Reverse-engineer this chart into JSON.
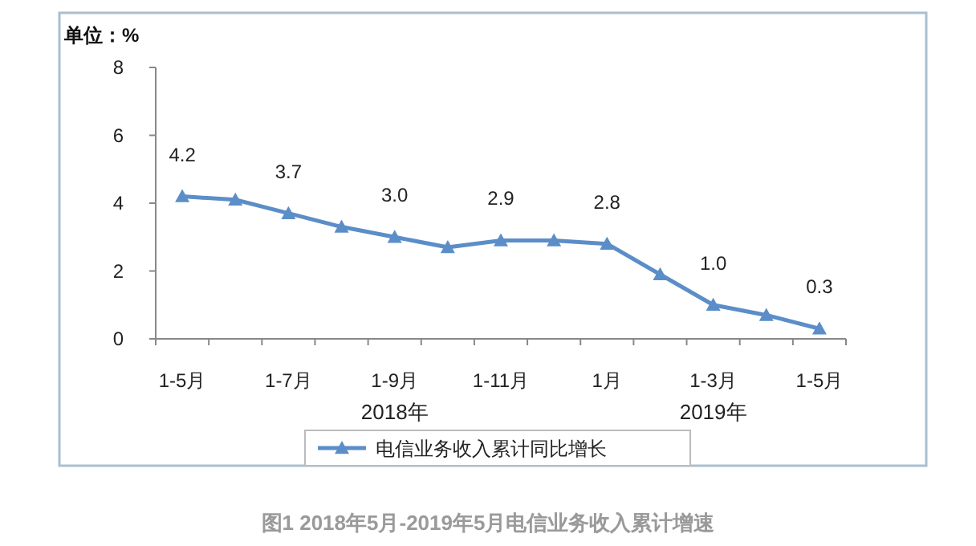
{
  "chart_data": {
    "type": "line",
    "ylabel": "单位：%",
    "categories": [
      "1-5月",
      null,
      "1-7月",
      null,
      "1-9月",
      null,
      "1-11月",
      null,
      "1月",
      null,
      "1-3月",
      null,
      "1-5月"
    ],
    "series": [
      {
        "name": "电信业务收入累计同比增长",
        "color": "#5b8ec8",
        "values": [
          4.2,
          4.1,
          3.7,
          3.3,
          3.0,
          2.7,
          2.9,
          2.9,
          2.8,
          1.9,
          1.0,
          0.7,
          0.3
        ],
        "value_labels": [
          "4.2",
          null,
          "3.7",
          null,
          "3.0",
          null,
          "2.9",
          null,
          "2.8",
          null,
          "1.0",
          null,
          "0.3"
        ]
      }
    ],
    "ylim": [
      0,
      8
    ],
    "yticks": [
      0,
      2,
      4,
      6,
      8
    ],
    "grid": false,
    "legend": "bottom",
    "marker": "triangle",
    "line_style": "solid",
    "annotations": [
      "2018年",
      "2019年",
      "图1  2018年5月-2019年5月电信业务收入累计增速"
    ]
  }
}
